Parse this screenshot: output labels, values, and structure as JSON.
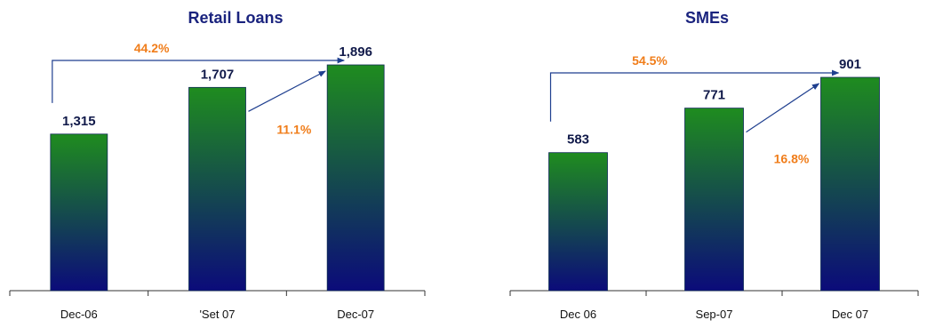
{
  "chart_data": [
    {
      "type": "bar",
      "title": "Retail Loans",
      "categories": [
        "Dec-06",
        "'Set 07",
        "Dec-07"
      ],
      "values": [
        1315,
        1707,
        1896
      ],
      "value_labels": [
        "1,315",
        "1,707",
        "1,896"
      ],
      "annotations": [
        {
          "label": "44.2%",
          "from": "Dec-06",
          "to": "Dec-07"
        },
        {
          "label": "11.1%",
          "from": "'Set 07",
          "to": "Dec-07"
        }
      ],
      "colors": {
        "bar_top": "#1f8c1f",
        "bar_bottom": "#0b0b7a",
        "label": "#111a4a",
        "growth": "#f07d1a",
        "arrow": "#1f3f8f"
      },
      "grid": false
    },
    {
      "type": "bar",
      "title": "SMEs",
      "categories": [
        "Dec 06",
        "Sep-07",
        "Dec 07"
      ],
      "values": [
        583,
        771,
        901
      ],
      "value_labels": [
        "583",
        "771",
        "901"
      ],
      "annotations": [
        {
          "label": "54.5%",
          "from": "Dec 06",
          "to": "Dec 07"
        },
        {
          "label": "16.8%",
          "from": "Sep-07",
          "to": "Dec 07"
        }
      ],
      "colors": {
        "bar_top": "#1f8c1f",
        "bar_bottom": "#0b0b7a",
        "label": "#111a4a",
        "growth": "#f07d1a",
        "arrow": "#1f3f8f"
      },
      "grid": false
    }
  ]
}
